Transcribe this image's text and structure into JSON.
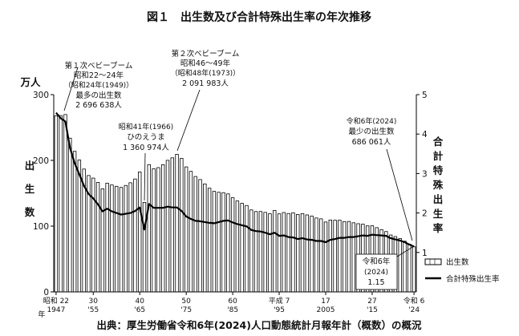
{
  "title": "図１　出生数及び合計特殊出生率の年次推移",
  "source": "出典：厚生労働省令和6年(2024)人口動態統計月報年計（概数）の概況",
  "left_axis": {
    "unit": "万人",
    "label_chars": [
      "出",
      "生",
      "数"
    ]
  },
  "right_axis": {
    "label_chars": [
      "合",
      "計",
      "特",
      "殊",
      "出",
      "生",
      "率"
    ]
  },
  "annotations": {
    "boom1": [
      "第１次ベビーブーム",
      "昭和22～24年",
      "（昭和24年(1949)）",
      "最多の出生数",
      "2 696 638人"
    ],
    "hinoeuma": [
      "昭和41年(1966)",
      "ひのえうま",
      "1 360 974人"
    ],
    "boom2": [
      "第２次ベビーブーム",
      "昭和46～49年",
      "（昭和48年(1973)）",
      "2 091 983人"
    ],
    "latest": [
      "令和6年(2024)",
      "最少の出生数",
      "686 061人"
    ],
    "latest_rate": [
      "令和6年",
      "(2024)",
      "1.15"
    ]
  },
  "legend": {
    "births": "出生数",
    "rate": "合計特殊出生率"
  },
  "x_ticks": [
    {
      "year": 1947,
      "top": "昭和 22",
      "bottom": "1947",
      "prefix": "年"
    },
    {
      "year": 1955,
      "top": "30",
      "bottom": "'55"
    },
    {
      "year": 1965,
      "top": "40",
      "bottom": "'65"
    },
    {
      "year": 1975,
      "top": "50",
      "bottom": "'75"
    },
    {
      "year": 1985,
      "top": "60",
      "bottom": "'85"
    },
    {
      "year": 1995,
      "top": "平成 7",
      "bottom": "'95"
    },
    {
      "year": 2005,
      "top": "17",
      "bottom": "2005"
    },
    {
      "year": 2015,
      "top": "27",
      "bottom": "'15"
    },
    {
      "year": 2024,
      "top": "令和 6",
      "bottom": "'24"
    }
  ],
  "chart_data": {
    "type": "bar",
    "title": "出生数及び合計特殊出生率の年次推移",
    "x": [
      1947,
      1948,
      1949,
      1950,
      1951,
      1952,
      1953,
      1954,
      1955,
      1956,
      1957,
      1958,
      1959,
      1960,
      1961,
      1962,
      1963,
      1964,
      1965,
      1966,
      1967,
      1968,
      1969,
      1970,
      1971,
      1972,
      1973,
      1974,
      1975,
      1976,
      1977,
      1978,
      1979,
      1980,
      1981,
      1982,
      1983,
      1984,
      1985,
      1986,
      1987,
      1988,
      1989,
      1990,
      1991,
      1992,
      1993,
      1994,
      1995,
      1996,
      1997,
      1998,
      1999,
      2000,
      2001,
      2002,
      2003,
      2004,
      2005,
      2006,
      2007,
      2008,
      2009,
      2010,
      2011,
      2012,
      2013,
      2014,
      2015,
      2016,
      2017,
      2018,
      2019,
      2020,
      2021,
      2022,
      2023,
      2024
    ],
    "series": [
      {
        "name": "出生数",
        "unit": "万人",
        "axis": "left",
        "values": [
          267.9,
          268.2,
          269.7,
          233.8,
          213.8,
          200.5,
          186.8,
          177.0,
          173.1,
          166.5,
          156.7,
          165.3,
          162.6,
          160.6,
          158.9,
          161.9,
          166.0,
          171.7,
          182.4,
          136.1,
          193.6,
          187.2,
          189.0,
          193.4,
          200.1,
          203.9,
          209.2,
          203.0,
          190.1,
          183.3,
          175.5,
          170.9,
          164.2,
          157.7,
          152.9,
          151.5,
          150.9,
          149.0,
          143.2,
          138.3,
          134.7,
          131.4,
          124.7,
          122.2,
          122.3,
          120.9,
          118.8,
          123.8,
          118.7,
          120.7,
          119.2,
          120.3,
          117.8,
          119.1,
          117.1,
          115.4,
          112.4,
          111.1,
          106.3,
          109.3,
          109.0,
          109.1,
          107.0,
          107.1,
          105.1,
          103.7,
          103.0,
          100.4,
          100.6,
          97.7,
          94.6,
          91.8,
          86.5,
          84.1,
          81.2,
          77.1,
          72.7,
          68.6
        ]
      },
      {
        "name": "合計特殊出生率",
        "axis": "right",
        "values": [
          4.54,
          4.4,
          4.32,
          3.65,
          3.26,
          2.98,
          2.69,
          2.48,
          2.37,
          2.22,
          2.04,
          2.11,
          2.04,
          2.0,
          1.96,
          1.98,
          2.0,
          2.05,
          2.14,
          1.58,
          2.23,
          2.13,
          2.13,
          2.13,
          2.16,
          2.14,
          2.14,
          2.05,
          1.91,
          1.85,
          1.8,
          1.79,
          1.77,
          1.75,
          1.74,
          1.77,
          1.8,
          1.81,
          1.76,
          1.72,
          1.69,
          1.66,
          1.57,
          1.54,
          1.53,
          1.5,
          1.46,
          1.5,
          1.42,
          1.43,
          1.39,
          1.38,
          1.34,
          1.36,
          1.33,
          1.32,
          1.29,
          1.29,
          1.26,
          1.32,
          1.34,
          1.37,
          1.37,
          1.39,
          1.39,
          1.41,
          1.43,
          1.42,
          1.45,
          1.44,
          1.43,
          1.42,
          1.36,
          1.33,
          1.3,
          1.26,
          1.2,
          1.15
        ]
      }
    ],
    "ylim_left": [
      0,
      300
    ],
    "yticks_left": [
      0,
      100,
      200,
      300
    ],
    "ylim_right": [
      0,
      5
    ],
    "yticks_right": [
      1,
      2,
      3,
      4,
      5
    ],
    "grid": false,
    "legend": "bottom-right"
  }
}
